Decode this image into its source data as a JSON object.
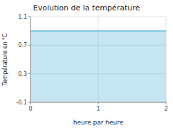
{
  "chart_data": {
    "type": "area",
    "title": "Evolution de la température",
    "xlabel": "heure par heure",
    "ylabel": "Température en °C",
    "x": [
      0,
      2
    ],
    "values": [
      0.9,
      0.9
    ],
    "color": "#5ab4d6",
    "xlim": [
      0,
      2
    ],
    "ylim": [
      -0.1,
      1.1
    ],
    "xticks": [
      0,
      1,
      2
    ],
    "yticks": [
      -0.1,
      0.3,
      0.7,
      1.1
    ],
    "grid": true
  }
}
